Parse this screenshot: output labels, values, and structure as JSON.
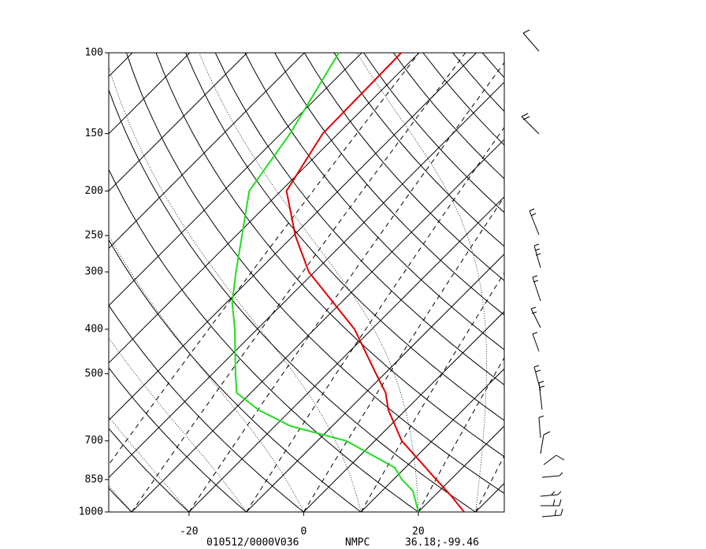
{
  "chart_data": {
    "type": "skewt",
    "ylim": [
      1000,
      100
    ],
    "yticks": [
      100,
      150,
      200,
      250,
      300,
      400,
      500,
      700,
      850,
      1000
    ],
    "log_y": true,
    "xlim": [
      -34,
      35
    ],
    "xticks": [
      -20,
      0,
      20
    ],
    "series": [
      {
        "color": "#e00000",
        "pressure": [
          1000,
          925,
          850,
          700,
          600,
          550,
          500,
          400,
          300,
          250,
          200,
          150,
          100
        ],
        "values": [
          28,
          23.1,
          17.5,
          4.7,
          -3,
          -6.5,
          -11.5,
          -23,
          -41,
          -49.7,
          -59,
          -62.7,
          -63.1
        ]
      },
      {
        "color": "#22dd22",
        "pressure": [
          1000,
          925,
          900,
          850,
          800,
          700,
          650,
          600,
          550,
          500,
          400,
          350,
          300,
          250,
          200,
          150,
          100
        ],
        "values": [
          20,
          16.6,
          15.4,
          11.5,
          8.1,
          -5,
          -17.3,
          -25.6,
          -32.5,
          -36,
          -43.9,
          -49,
          -53.7,
          -59,
          -65.5,
          -68.4,
          -74
        ]
      }
    ],
    "footer": [
      "010512/0000V036",
      "NMPC",
      "36.18;-99.46"
    ]
  }
}
